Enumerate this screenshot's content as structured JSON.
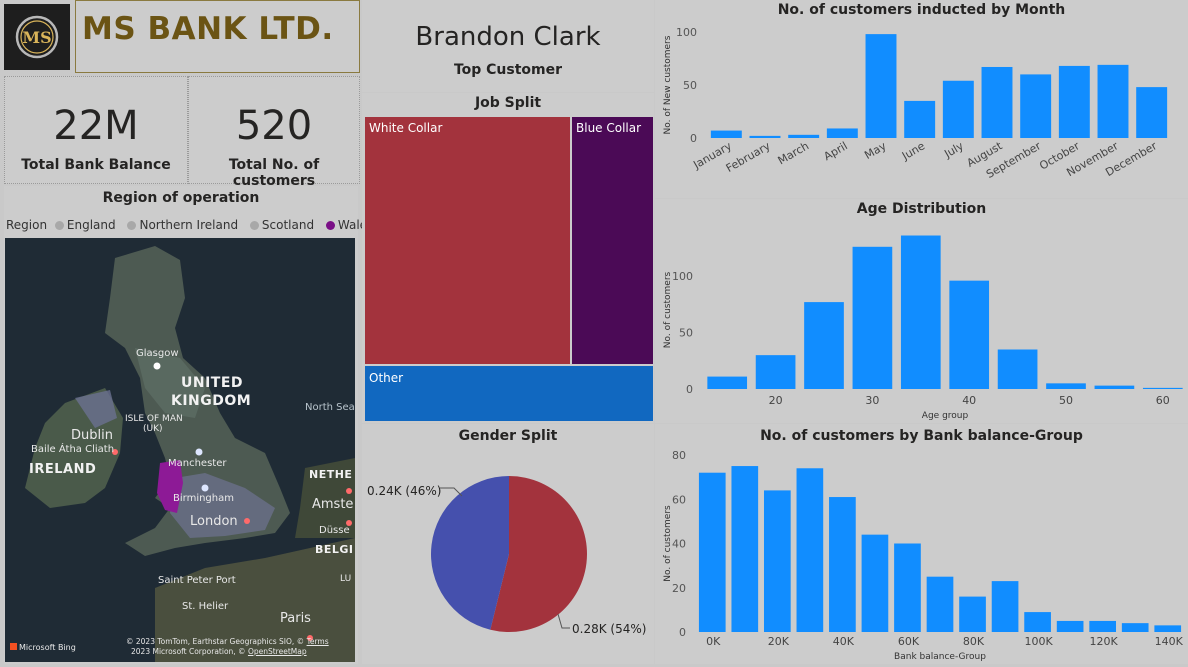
{
  "header": {
    "bank_title": "MS BANK LTD.",
    "logo_text": "MS"
  },
  "kpis": {
    "balance_value": "22M",
    "balance_label": "Total Bank Balance",
    "customers_value": "520",
    "customers_label": "Total No. of customers"
  },
  "top_customer": {
    "name": "Brandon Clark",
    "label": "Top Customer"
  },
  "region": {
    "title": "Region of operation",
    "legend_label": "Region",
    "items": [
      {
        "name": "England",
        "color": "#a8a8a8"
      },
      {
        "name": "Northern Ireland",
        "color": "#a8a8a8"
      },
      {
        "name": "Scotland",
        "color": "#a8a8a8"
      },
      {
        "name": "Wales",
        "color": "#7a0f86"
      }
    ],
    "map_labels": {
      "glasgow": "Glasgow",
      "uk1": "UNITED",
      "uk2": "KINGDOM",
      "isle1": "ISLE OF MAN",
      "isle2": "(UK)",
      "north_sea": "North Sea",
      "dublin": "Dublin",
      "baile": "Baile Átha Cliath",
      "ireland": "IRELAND",
      "manchester": "Manchester",
      "birmingham": "Birmingham",
      "london": "London",
      "neth": "NETHE",
      "amst": "Amste",
      "dusse": "Düsse",
      "belg": "BELGI",
      "lu": "LU",
      "saint_peter": "Saint Peter Port",
      "st_helier": "St. Helier",
      "paris": "Paris",
      "bing": "Microsoft Bing",
      "copyright1": "© 2023 TomTom, Earthstar Geographics SIO, ©",
      "terms": "Terms",
      "copyright2": "2023 Microsoft Corporation, ©",
      "osm": "OpenStreetMap"
    }
  },
  "job_split": {
    "title": "Job Split",
    "items": [
      {
        "label": "White Collar",
        "color": "#a3333d"
      },
      {
        "label": "Blue Collar",
        "color": "#4b0a56"
      },
      {
        "label": "Other",
        "color": "#1168c0"
      }
    ]
  },
  "gender_split": {
    "title": "Gender Split",
    "label_a": "0.24K (46%)",
    "label_b": "0.28K (54%)",
    "color_a": "#4550ad",
    "color_b": "#a3333d"
  },
  "chart_data": [
    {
      "type": "bar",
      "title": "No. of customers inducted by Month",
      "ylabel": "No. of New customers",
      "xlabel": "",
      "categories": [
        "January",
        "February",
        "March",
        "April",
        "May",
        "June",
        "July",
        "August",
        "September",
        "October",
        "November",
        "December"
      ],
      "values": [
        7,
        2,
        3,
        9,
        98,
        35,
        54,
        67,
        60,
        68,
        69,
        48
      ],
      "ylim": [
        0,
        100
      ],
      "yticks": [
        0,
        50,
        100
      ],
      "color": "#118dff"
    },
    {
      "type": "bar",
      "title": "Age Distribution",
      "ylabel": "No. of customers",
      "xlabel": "Age group",
      "categories": [
        15,
        20,
        25,
        30,
        35,
        40,
        45,
        50,
        55,
        60
      ],
      "values": [
        11,
        30,
        77,
        126,
        136,
        96,
        35,
        5,
        3,
        1
      ],
      "ylim": [
        0,
        140
      ],
      "yticks": [
        0,
        50,
        100
      ],
      "xticks": [
        20,
        30,
        40,
        50,
        60
      ],
      "color": "#118dff"
    },
    {
      "type": "bar",
      "title": "No. of customers by Bank balance-Group",
      "ylabel": "No. of customers",
      "xlabel": "Bank balance-Group",
      "categories": [
        0,
        10000,
        20000,
        30000,
        40000,
        50000,
        60000,
        70000,
        80000,
        90000,
        100000,
        110000,
        120000,
        130000,
        140000
      ],
      "values": [
        72,
        75,
        64,
        74,
        61,
        44,
        40,
        25,
        16,
        23,
        9,
        5,
        5,
        4,
        3
      ],
      "ylim": [
        0,
        80
      ],
      "yticks": [
        0,
        20,
        40,
        60,
        80
      ],
      "xtick_labels": [
        "0K",
        "20K",
        "40K",
        "60K",
        "80K",
        "100K",
        "120K",
        "140K"
      ],
      "color": "#118dff"
    },
    {
      "type": "pie",
      "title": "Gender Split",
      "labels": [
        "0.24K (46%)",
        "0.28K (54%)"
      ],
      "values": [
        240,
        280
      ],
      "colors": [
        "#4550ad",
        "#a3333d"
      ]
    },
    {
      "type": "table",
      "title": "Job Split",
      "labels": [
        "White Collar",
        "Blue Collar",
        "Other"
      ]
    }
  ]
}
